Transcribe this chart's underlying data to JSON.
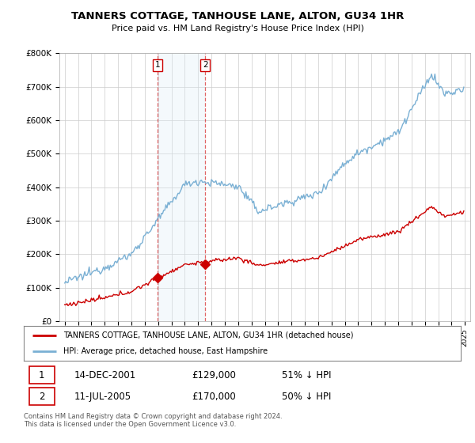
{
  "title": "TANNERS COTTAGE, TANHOUSE LANE, ALTON, GU34 1HR",
  "subtitle": "Price paid vs. HM Land Registry's House Price Index (HPI)",
  "legend_label_red": "TANNERS COTTAGE, TANHOUSE LANE, ALTON, GU34 1HR (detached house)",
  "legend_label_blue": "HPI: Average price, detached house, East Hampshire",
  "transaction1_date": "14-DEC-2001",
  "transaction1_price": "£129,000",
  "transaction1_hpi": "51% ↓ HPI",
  "transaction2_date": "11-JUL-2005",
  "transaction2_price": "£170,000",
  "transaction2_hpi": "50% ↓ HPI",
  "footer": "Contains HM Land Registry data © Crown copyright and database right 2024.\nThis data is licensed under the Open Government Licence v3.0.",
  "ylim": [
    0,
    800000
  ],
  "yticks": [
    0,
    100000,
    200000,
    300000,
    400000,
    500000,
    600000,
    700000,
    800000
  ],
  "ytick_labels": [
    "£0",
    "£100K",
    "£200K",
    "£300K",
    "£400K",
    "£500K",
    "£600K",
    "£700K",
    "£800K"
  ],
  "color_red": "#cc0000",
  "color_blue": "#7ab0d4",
  "color_shade": "#ddeef8",
  "transaction1_x": 2001.96,
  "transaction1_y": 129000,
  "transaction2_x": 2005.54,
  "transaction2_y": 170000,
  "bg_color": "#ffffff",
  "grid_color": "#cccccc",
  "xlim_left": 1994.6,
  "xlim_right": 2025.4
}
